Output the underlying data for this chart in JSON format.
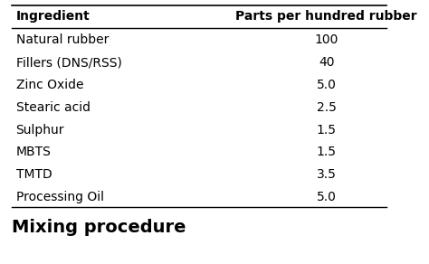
{
  "col1_header": "Ingredient",
  "col2_header": "Parts per hundred rubber",
  "rows": [
    [
      "Natural rubber",
      "100"
    ],
    [
      "Fillers (DNS/RSS)",
      "40"
    ],
    [
      "Zinc Oxide",
      "5.0"
    ],
    [
      "Stearic acid",
      "2.5"
    ],
    [
      "Sulphur",
      "1.5"
    ],
    [
      "MBTS",
      "1.5"
    ],
    [
      "TMTD",
      "3.5"
    ],
    [
      "Processing Oil",
      "5.0"
    ]
  ],
  "footer_text": "Mixing procedure",
  "bg_color": "#ffffff",
  "text_color": "#000000",
  "header_fontsize": 10,
  "row_fontsize": 10,
  "footer_fontsize": 14
}
